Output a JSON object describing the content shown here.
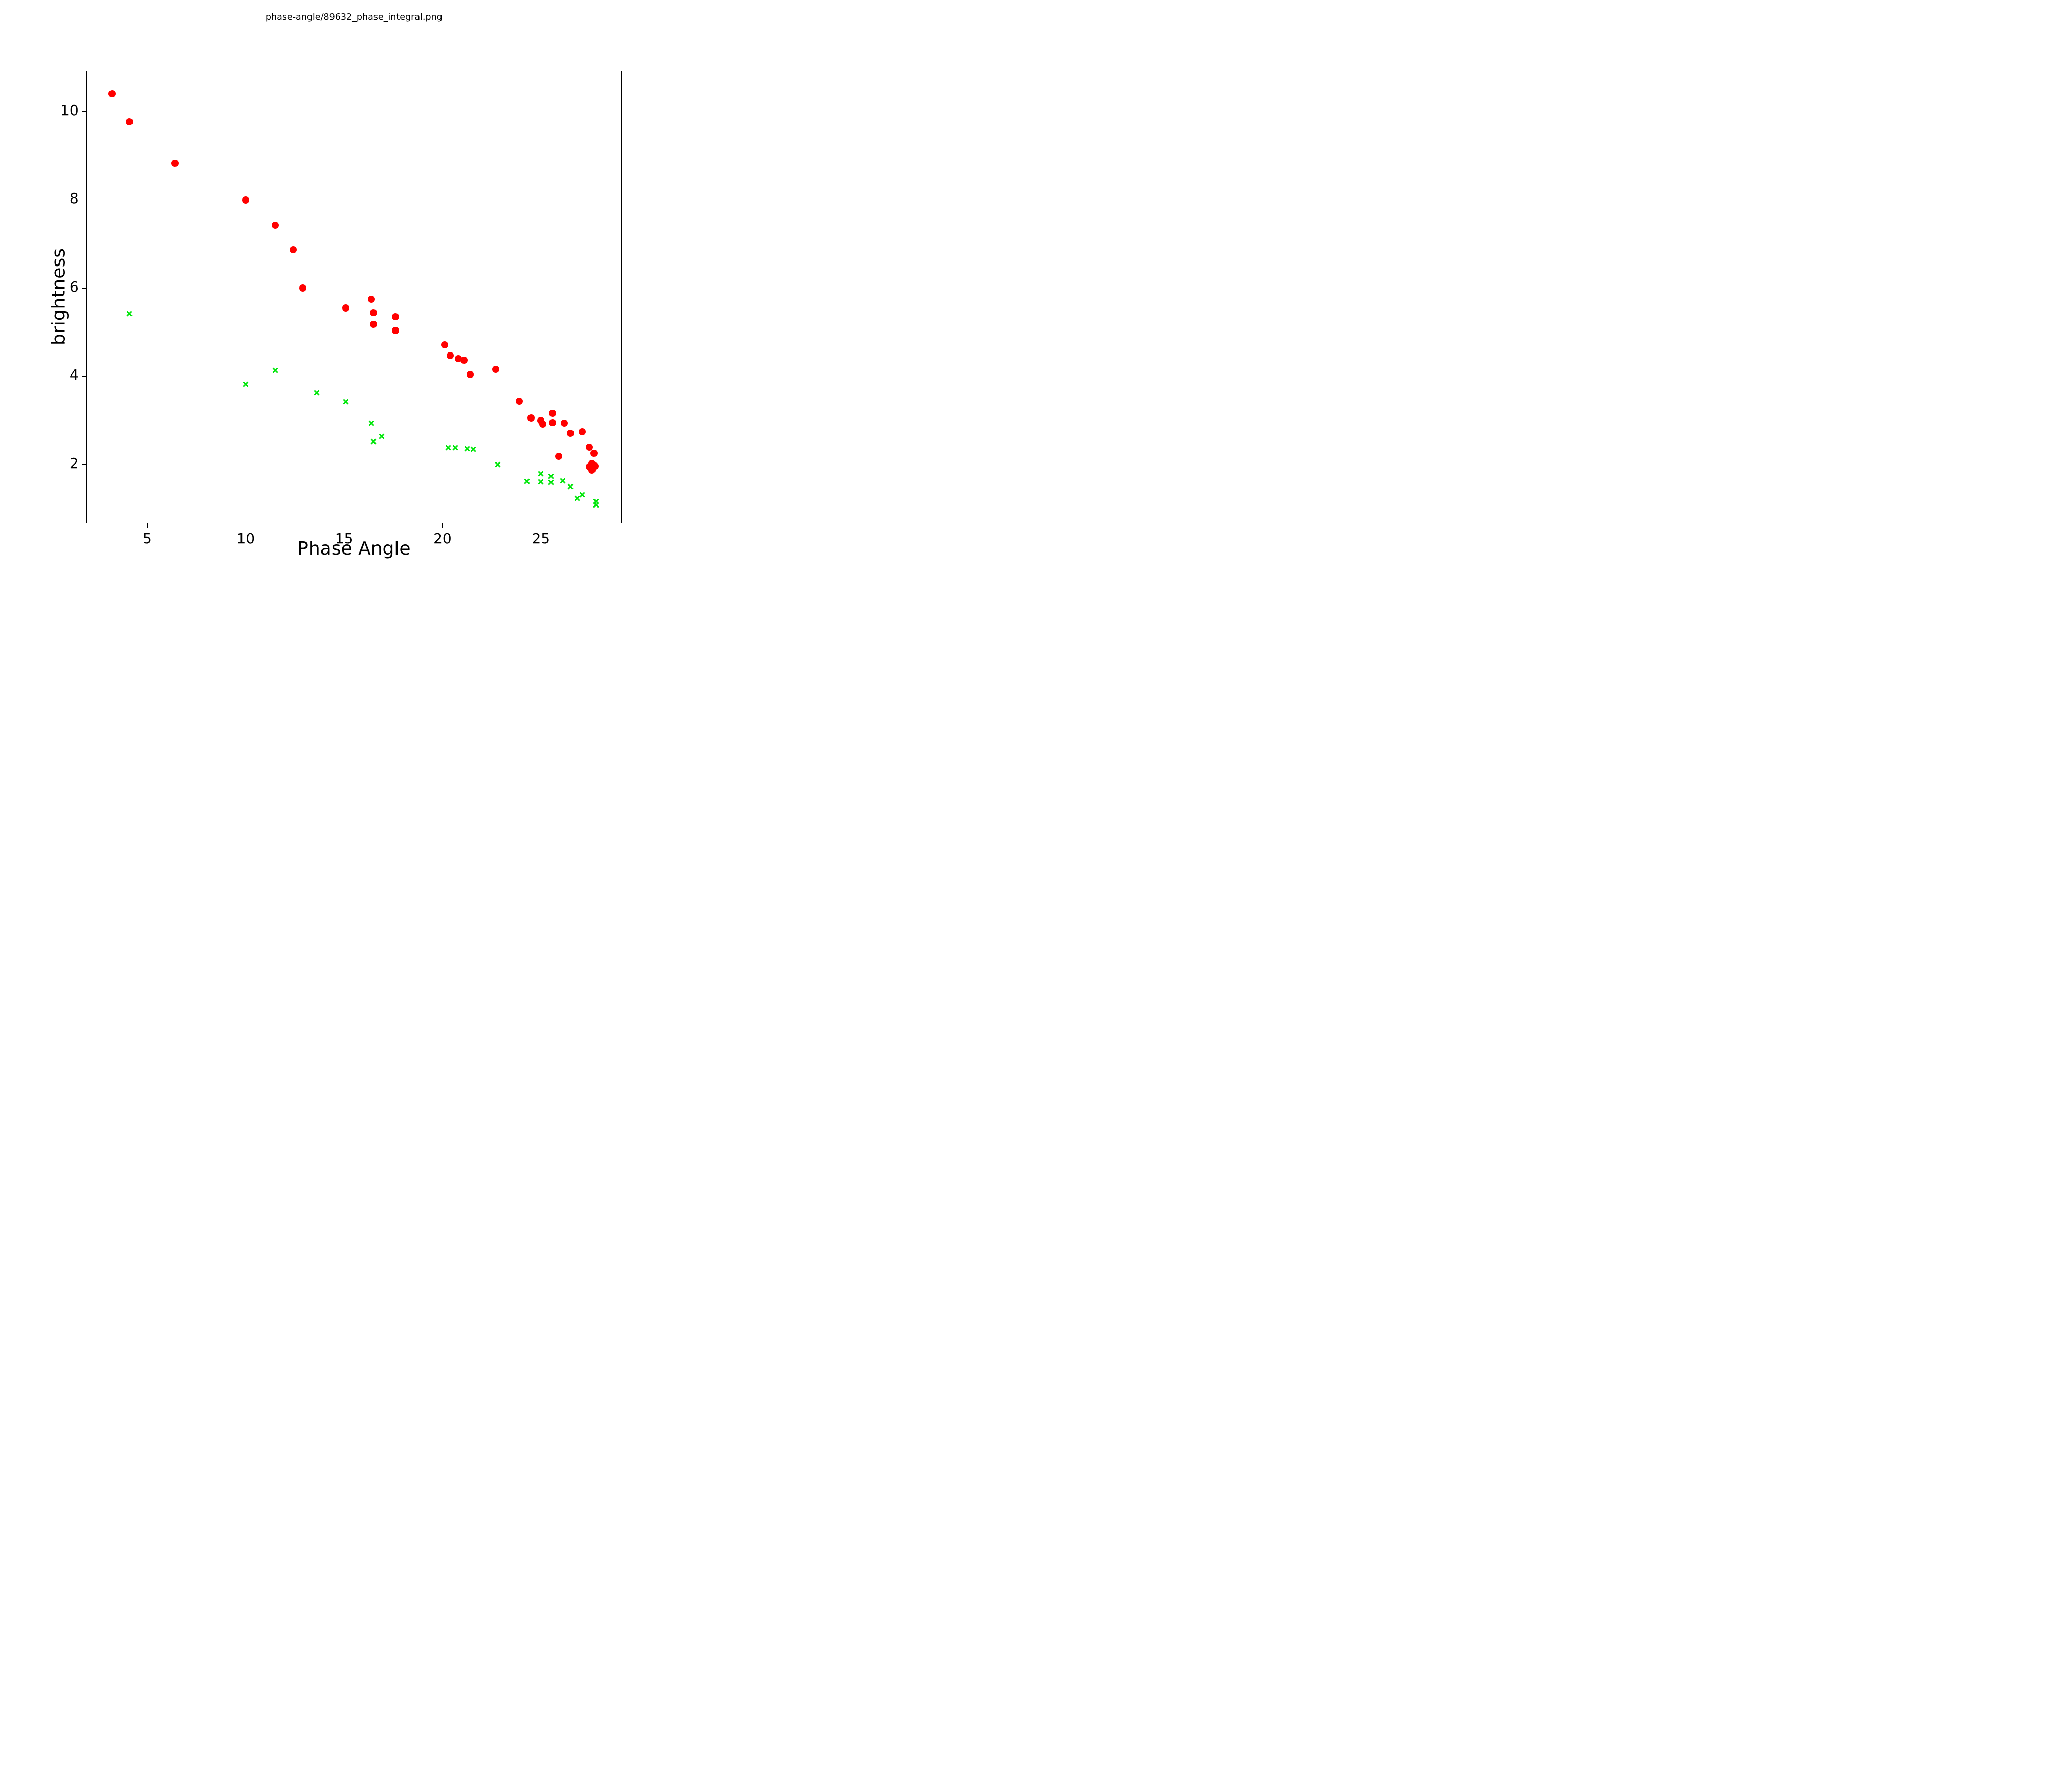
{
  "figure": {
    "background_color": "#ffffff"
  },
  "chart_data": {
    "type": "scatter",
    "title": "phase-angle/89632_phase_integral.png",
    "xlabel": "Phase Angle",
    "ylabel": "brightness",
    "xlim": [
      1.9,
      29.1
    ],
    "ylim": [
      0.66,
      10.93
    ],
    "xticks": [
      5,
      10,
      15,
      20,
      25
    ],
    "yticks": [
      2,
      4,
      6,
      8,
      10
    ],
    "grid": false,
    "legend_position": "none",
    "axis_color": "#000000",
    "series": [
      {
        "name": "red-circles",
        "marker": "circle",
        "color": "#ff0000",
        "points": [
          [
            3.2,
            10.4
          ],
          [
            4.1,
            9.77
          ],
          [
            6.4,
            8.83
          ],
          [
            10.0,
            7.99
          ],
          [
            11.5,
            7.42
          ],
          [
            12.4,
            6.87
          ],
          [
            12.9,
            6.0
          ],
          [
            15.1,
            5.55
          ],
          [
            16.4,
            5.74
          ],
          [
            16.5,
            5.44
          ],
          [
            16.5,
            5.18
          ],
          [
            17.6,
            5.35
          ],
          [
            17.6,
            5.03
          ],
          [
            20.1,
            4.71
          ],
          [
            20.4,
            4.47
          ],
          [
            20.8,
            4.4
          ],
          [
            21.1,
            4.36
          ],
          [
            21.4,
            4.04
          ],
          [
            22.7,
            4.15
          ],
          [
            23.9,
            3.44
          ],
          [
            24.5,
            3.05
          ],
          [
            25.0,
            3.0
          ],
          [
            25.1,
            2.91
          ],
          [
            25.6,
            3.16
          ],
          [
            25.6,
            2.95
          ],
          [
            26.2,
            2.94
          ],
          [
            26.5,
            2.71
          ],
          [
            27.1,
            2.74
          ],
          [
            25.9,
            2.18
          ],
          [
            27.45,
            2.39
          ],
          [
            27.7,
            2.25
          ],
          [
            27.6,
            2.02
          ],
          [
            27.45,
            1.95
          ],
          [
            27.75,
            1.96
          ],
          [
            27.6,
            1.87
          ]
        ]
      },
      {
        "name": "green-crosses",
        "marker": "x",
        "color": "#00e60a",
        "points": [
          [
            4.1,
            5.42
          ],
          [
            10.0,
            3.82
          ],
          [
            11.5,
            4.13
          ],
          [
            13.6,
            3.62
          ],
          [
            15.1,
            3.42
          ],
          [
            16.4,
            2.94
          ],
          [
            16.9,
            2.64
          ],
          [
            16.5,
            2.52
          ],
          [
            20.3,
            2.38
          ],
          [
            20.65,
            2.38
          ],
          [
            21.25,
            2.36
          ],
          [
            21.55,
            2.35
          ],
          [
            22.8,
            2.0
          ],
          [
            24.3,
            1.62
          ],
          [
            25.0,
            1.79
          ],
          [
            25.0,
            1.6
          ],
          [
            25.5,
            1.73
          ],
          [
            25.5,
            1.59
          ],
          [
            26.1,
            1.63
          ],
          [
            26.5,
            1.5
          ],
          [
            26.85,
            1.23
          ],
          [
            27.1,
            1.31
          ],
          [
            27.8,
            1.16
          ],
          [
            27.8,
            1.08
          ]
        ]
      }
    ]
  }
}
